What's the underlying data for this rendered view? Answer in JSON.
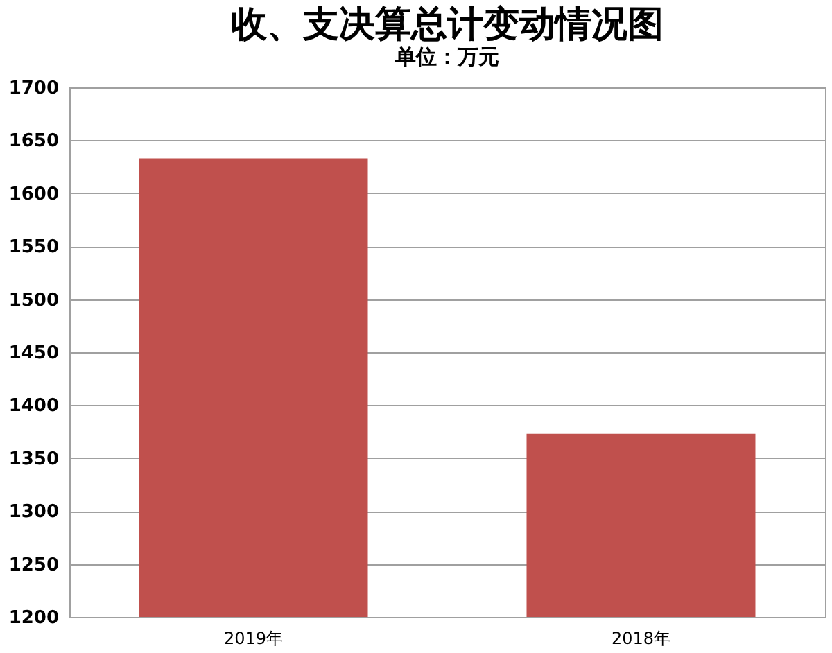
{
  "chart_data": {
    "type": "bar",
    "title": "收、支决算总计变动情况图",
    "subtitle": "单位：万元",
    "categories": [
      "2019年",
      "2018年"
    ],
    "values": [
      1633,
      1373
    ],
    "color": "#c0504d",
    "ylim": [
      1200,
      1700
    ],
    "yticks": [
      1200,
      1250,
      1300,
      1350,
      1400,
      1450,
      1500,
      1550,
      1600,
      1650,
      1700
    ],
    "grid": "y"
  }
}
